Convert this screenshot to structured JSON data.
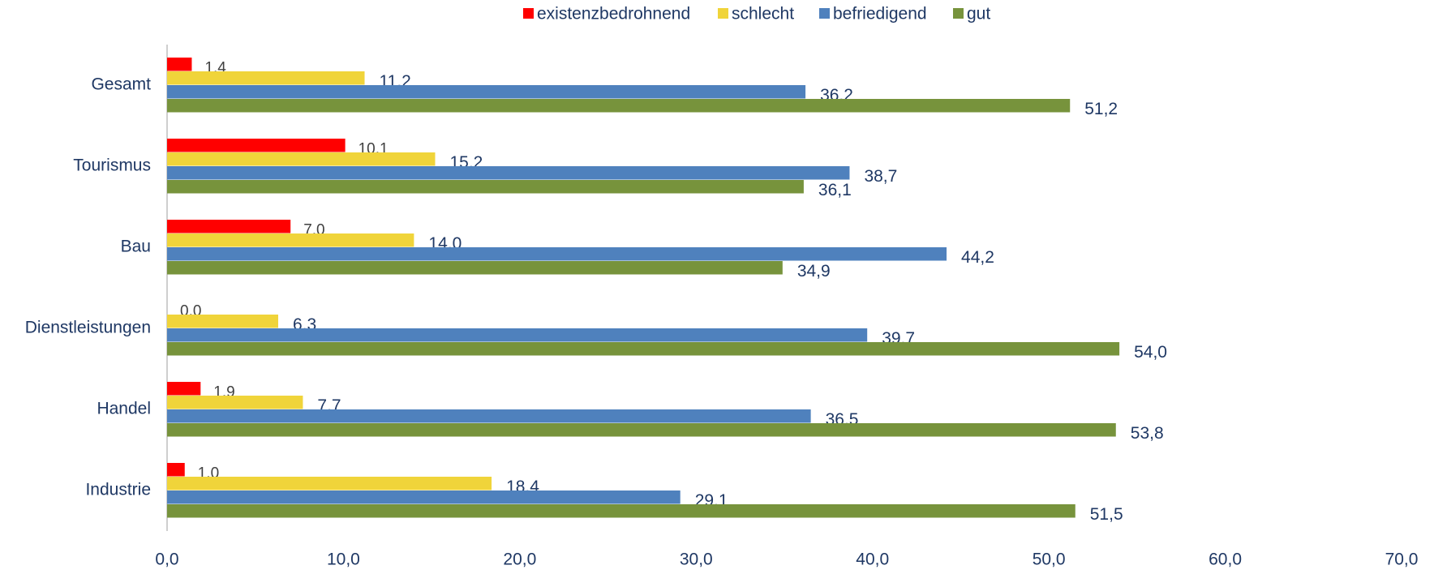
{
  "chart_data": {
    "type": "hbar",
    "categories": [
      "Gesamt",
      "Tourismus",
      "Bau",
      "Dienstleistungen",
      "Handel",
      "Industrie"
    ],
    "series": [
      {
        "name": "existenzbedrohnend",
        "color": "#ff0000",
        "values": [
          1.4,
          10.1,
          7.0,
          0.0,
          1.9,
          1.0
        ],
        "value_labels": [
          "1,4",
          "10,1",
          "7,0",
          "0,0",
          "1,9",
          "1,0"
        ]
      },
      {
        "name": "schlecht",
        "color": "#f0d43a",
        "values": [
          11.2,
          15.2,
          14.0,
          6.3,
          7.7,
          18.4
        ],
        "value_labels": [
          "11,2",
          "15,2",
          "14,0",
          "6,3",
          "7,7",
          "18,4"
        ]
      },
      {
        "name": "befriedigend",
        "color": "#4f81bd",
        "values": [
          36.2,
          38.7,
          44.2,
          39.7,
          36.5,
          29.1
        ],
        "value_labels": [
          "36,2",
          "38,7",
          "44,2",
          "39,7",
          "36,5",
          "29,1"
        ]
      },
      {
        "name": "gut",
        "color": "#77933c",
        "values": [
          51.2,
          36.1,
          34.9,
          54.0,
          53.8,
          51.5
        ],
        "value_labels": [
          "51,2",
          "36,1",
          "34,9",
          "54,0",
          "53,8",
          "51,5"
        ]
      }
    ],
    "xlim": [
      0,
      70
    ],
    "xticks": [
      {
        "value": 0,
        "label": "0,0"
      },
      {
        "value": 10,
        "label": "10,0"
      },
      {
        "value": 20,
        "label": "20,0"
      },
      {
        "value": 30,
        "label": "30,0"
      },
      {
        "value": 40,
        "label": "40,0"
      },
      {
        "value": 50,
        "label": "50,0"
      },
      {
        "value": 60,
        "label": "60,0"
      },
      {
        "value": 70,
        "label": "70,0"
      }
    ],
    "legend": "top"
  }
}
